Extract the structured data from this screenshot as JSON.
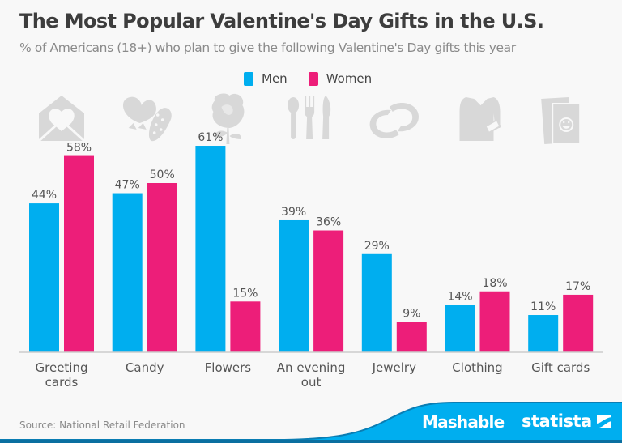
{
  "header": {
    "title": "The Most Popular Valentine's Day Gifts in the U.S.",
    "subtitle": "% of Americans (18+) who plan to give the following Valentine's Day gifts this year"
  },
  "footer": {
    "source": "Source: National Retail Federation",
    "brand1": "Mashable",
    "brand2": "statista",
    "brand_color": "#00aeef"
  },
  "colors": {
    "men": "#00aeef",
    "women": "#ed1e79",
    "icon": "#d8d8d8",
    "label": "#555555"
  },
  "chart_data": {
    "type": "bar",
    "title": "The Most Popular Valentine's Day Gifts in the U.S.",
    "subtitle": "% of Americans (18+) who plan to give the following Valentine's Day gifts this year",
    "xlabel": "",
    "ylabel": "",
    "ylim": [
      0,
      61
    ],
    "grid": false,
    "legend_position": "top-center",
    "categories": [
      "Greeting cards",
      "Candy",
      "Flowers",
      "An evening out",
      "Jewelry",
      "Clothing",
      "Gift cards"
    ],
    "category_label_lines": [
      [
        "Greeting",
        "cards"
      ],
      [
        "Candy"
      ],
      [
        "Flowers"
      ],
      [
        "An evening",
        "out"
      ],
      [
        "Jewelry"
      ],
      [
        "Clothing"
      ],
      [
        "Gift cards"
      ]
    ],
    "category_icons": [
      "envelope-heart-icon",
      "candy-box-icon",
      "rose-icon",
      "cutlery-icon",
      "rings-icon",
      "shirt-icon",
      "gift-card-icon"
    ],
    "series": [
      {
        "name": "Men",
        "values": [
          44,
          47,
          61,
          39,
          29,
          14,
          11
        ]
      },
      {
        "name": "Women",
        "values": [
          58,
          50,
          15,
          36,
          9,
          18,
          17
        ]
      }
    ],
    "value_suffix": "%"
  }
}
